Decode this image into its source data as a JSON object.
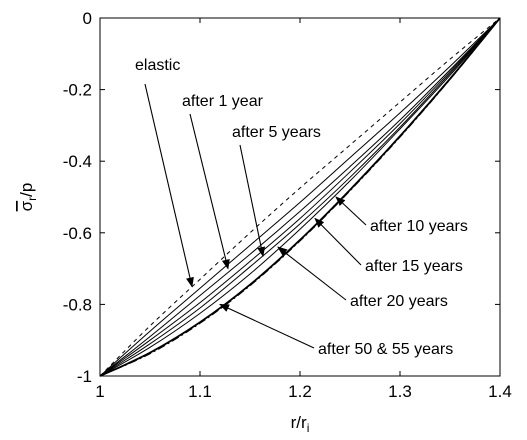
{
  "chart_data": {
    "type": "line",
    "title": "",
    "xlabel": "r/r",
    "xlabel_sub": "i",
    "ylabel_over": "σ",
    "ylabel_sub": "r",
    "ylabel_tail": "/p",
    "xlim": [
      1,
      1.4
    ],
    "ylim": [
      -1,
      0
    ],
    "x_ticks": [
      1,
      1.1,
      1.2,
      1.3,
      1.4
    ],
    "x_tick_labels": [
      "1",
      "1.1",
      "1.2",
      "1.3",
      "1.4"
    ],
    "y_ticks": [
      0,
      -0.2,
      -0.4,
      -0.6,
      -0.8,
      -1
    ],
    "y_tick_labels": [
      "0",
      "-0.2",
      "-0.4",
      "-0.6",
      "-0.8",
      "-1"
    ],
    "grid": false,
    "series": [
      {
        "name": "elastic",
        "dash": "dashed",
        "x": [
          1,
          1.05,
          1.1,
          1.15,
          1.2,
          1.25,
          1.3,
          1.35,
          1.4
        ],
        "y": [
          -1,
          -0.86,
          -0.73,
          -0.6,
          -0.475,
          -0.355,
          -0.235,
          -0.115,
          0
        ]
      },
      {
        "name": "after 1 year",
        "dash": "solid",
        "x": [
          1,
          1.05,
          1.1,
          1.15,
          1.2,
          1.25,
          1.3,
          1.35,
          1.4
        ],
        "y": [
          -1,
          -0.875,
          -0.755,
          -0.635,
          -0.515,
          -0.39,
          -0.265,
          -0.135,
          0
        ]
      },
      {
        "name": "after 5 years",
        "dash": "solid",
        "x": [
          1,
          1.05,
          1.1,
          1.15,
          1.2,
          1.25,
          1.3,
          1.35,
          1.4
        ],
        "y": [
          -1,
          -0.89,
          -0.775,
          -0.66,
          -0.54,
          -0.415,
          -0.285,
          -0.145,
          0
        ]
      },
      {
        "name": "after 10 years",
        "dash": "solid",
        "x": [
          1,
          1.05,
          1.1,
          1.15,
          1.2,
          1.25,
          1.3,
          1.35,
          1.4
        ],
        "y": [
          -1,
          -0.9,
          -0.795,
          -0.68,
          -0.56,
          -0.43,
          -0.295,
          -0.15,
          0
        ]
      },
      {
        "name": "after 15 years",
        "dash": "solid",
        "x": [
          1,
          1.05,
          1.1,
          1.15,
          1.2,
          1.25,
          1.3,
          1.35,
          1.4
        ],
        "y": [
          -1,
          -0.91,
          -0.81,
          -0.695,
          -0.575,
          -0.445,
          -0.305,
          -0.155,
          0
        ]
      },
      {
        "name": "after 20 years",
        "dash": "solid",
        "x": [
          1,
          1.05,
          1.1,
          1.15,
          1.2,
          1.25,
          1.3,
          1.35,
          1.4
        ],
        "y": [
          -1,
          -0.92,
          -0.825,
          -0.715,
          -0.59,
          -0.455,
          -0.31,
          -0.16,
          0
        ]
      },
      {
        "name": "after 50 & 55 years",
        "dash": "solid",
        "weight": "bold",
        "x": [
          1,
          1.05,
          1.1,
          1.15,
          1.2,
          1.25,
          1.3,
          1.35,
          1.4
        ],
        "y": [
          -1,
          -0.935,
          -0.85,
          -0.745,
          -0.62,
          -0.48,
          -0.33,
          -0.17,
          0
        ]
      },
      {
        "name": "after 50 & 55 years (dash-dot)",
        "dash": "dashdot",
        "x": [
          1,
          1.05,
          1.1,
          1.15,
          1.2,
          1.25,
          1.3,
          1.35,
          1.4
        ],
        "y": [
          -1,
          -0.938,
          -0.853,
          -0.748,
          -0.623,
          -0.483,
          -0.333,
          -0.172,
          0
        ]
      }
    ],
    "annotations": [
      {
        "text": "elastic",
        "points_to": {
          "x": 1.092,
          "y": -0.75
        }
      },
      {
        "text": "after 1 year",
        "points_to": {
          "x": 1.128,
          "y": -0.7
        }
      },
      {
        "text": "after 5 years",
        "points_to": {
          "x": 1.163,
          "y": -0.665
        }
      },
      {
        "text": "after 10 years",
        "points_to": {
          "x": 1.236,
          "y": -0.5
        }
      },
      {
        "text": "after 15 years",
        "points_to": {
          "x": 1.215,
          "y": -0.56
        }
      },
      {
        "text": "after 20 years",
        "points_to": {
          "x": 1.178,
          "y": -0.64
        }
      },
      {
        "text": "after 50 & 55 years",
        "points_to": {
          "x": 1.12,
          "y": -0.8
        }
      }
    ]
  }
}
